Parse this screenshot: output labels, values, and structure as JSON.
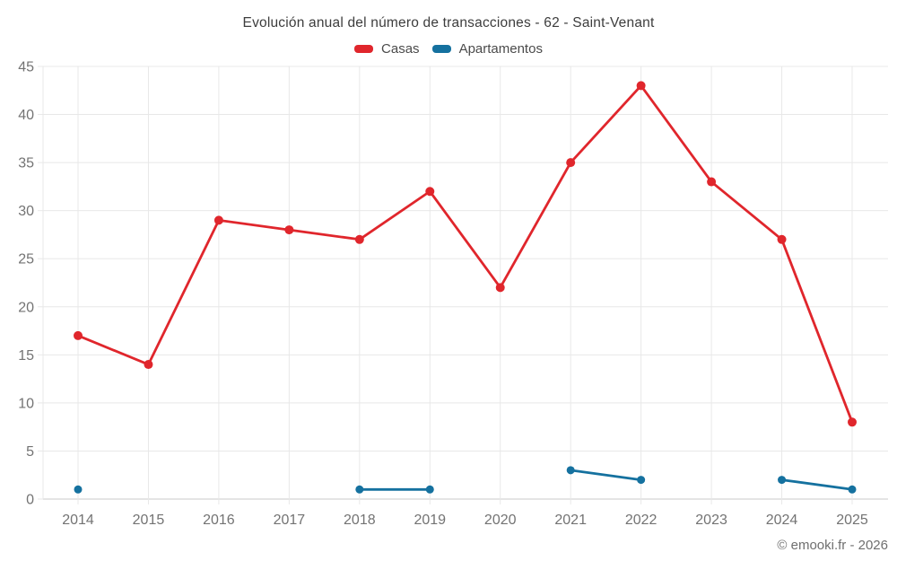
{
  "chart_data": {
    "type": "line",
    "title": "Evolución anual del número de transacciones - 62 - Saint-Venant",
    "categories": [
      "2014",
      "2015",
      "2016",
      "2017",
      "2018",
      "2019",
      "2020",
      "2021",
      "2022",
      "2023",
      "2024",
      "2025"
    ],
    "series": [
      {
        "name": "Casas",
        "color": "#e0262c",
        "values": [
          17,
          14,
          29,
          28,
          27,
          32,
          22,
          35,
          43,
          33,
          27,
          8
        ]
      },
      {
        "name": "Apartamentos",
        "color": "#15719f",
        "values": [
          1,
          null,
          null,
          null,
          1,
          1,
          null,
          3,
          2,
          null,
          2,
          1
        ]
      }
    ],
    "ylim": [
      0,
      45
    ],
    "ytick_step": 5,
    "grid": true,
    "legend_position": "top",
    "footer": "© emooki.fr - 2026",
    "colors": {
      "grid": "#e8e8e8",
      "zero_axis": "#c9c9c9",
      "tick_label": "#737373",
      "title_text": "#3d3d3d"
    }
  }
}
